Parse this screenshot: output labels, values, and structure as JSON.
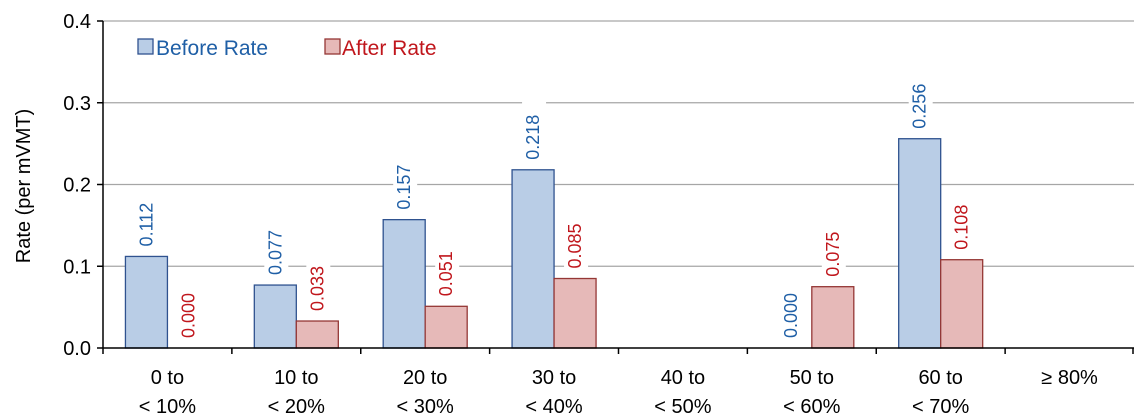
{
  "chart_data": {
    "type": "bar",
    "ylabel": "Rate (per mVMT)",
    "ylim": [
      0,
      0.4
    ],
    "yticks": [
      "0.0",
      "0.1",
      "0.2",
      "0.3",
      "0.4"
    ],
    "grid": true,
    "legend_position": "top-left",
    "categories": [
      [
        "0 to",
        "< 10%"
      ],
      [
        "10 to",
        "< 20%"
      ],
      [
        "20 to",
        "< 30%"
      ],
      [
        "30 to",
        "< 40%"
      ],
      [
        "40 to",
        "< 50%"
      ],
      [
        "50 to",
        "< 60%"
      ],
      [
        "60 to",
        "< 70%"
      ],
      [
        "≥ 80%"
      ]
    ],
    "series": [
      {
        "name": "Before Rate",
        "values": [
          0.112,
          0.077,
          0.157,
          0.218,
          null,
          0.0,
          0.256,
          null
        ],
        "labels": [
          "0.112",
          "0.077",
          "0.157",
          "0.218",
          null,
          "0.000",
          "0.256",
          null
        ],
        "fill": "#b9cde6",
        "stroke": "#2f528f",
        "label_color": "#1f5fa6"
      },
      {
        "name": "After Rate",
        "values": [
          0.0,
          0.033,
          0.051,
          0.085,
          null,
          0.075,
          0.108,
          null
        ],
        "labels": [
          "0.000",
          "0.033",
          "0.051",
          "0.085",
          null,
          "0.075",
          "0.108",
          null
        ],
        "fill": "#e6b9b8",
        "stroke": "#953735",
        "label_color": "#c0161c"
      }
    ]
  }
}
